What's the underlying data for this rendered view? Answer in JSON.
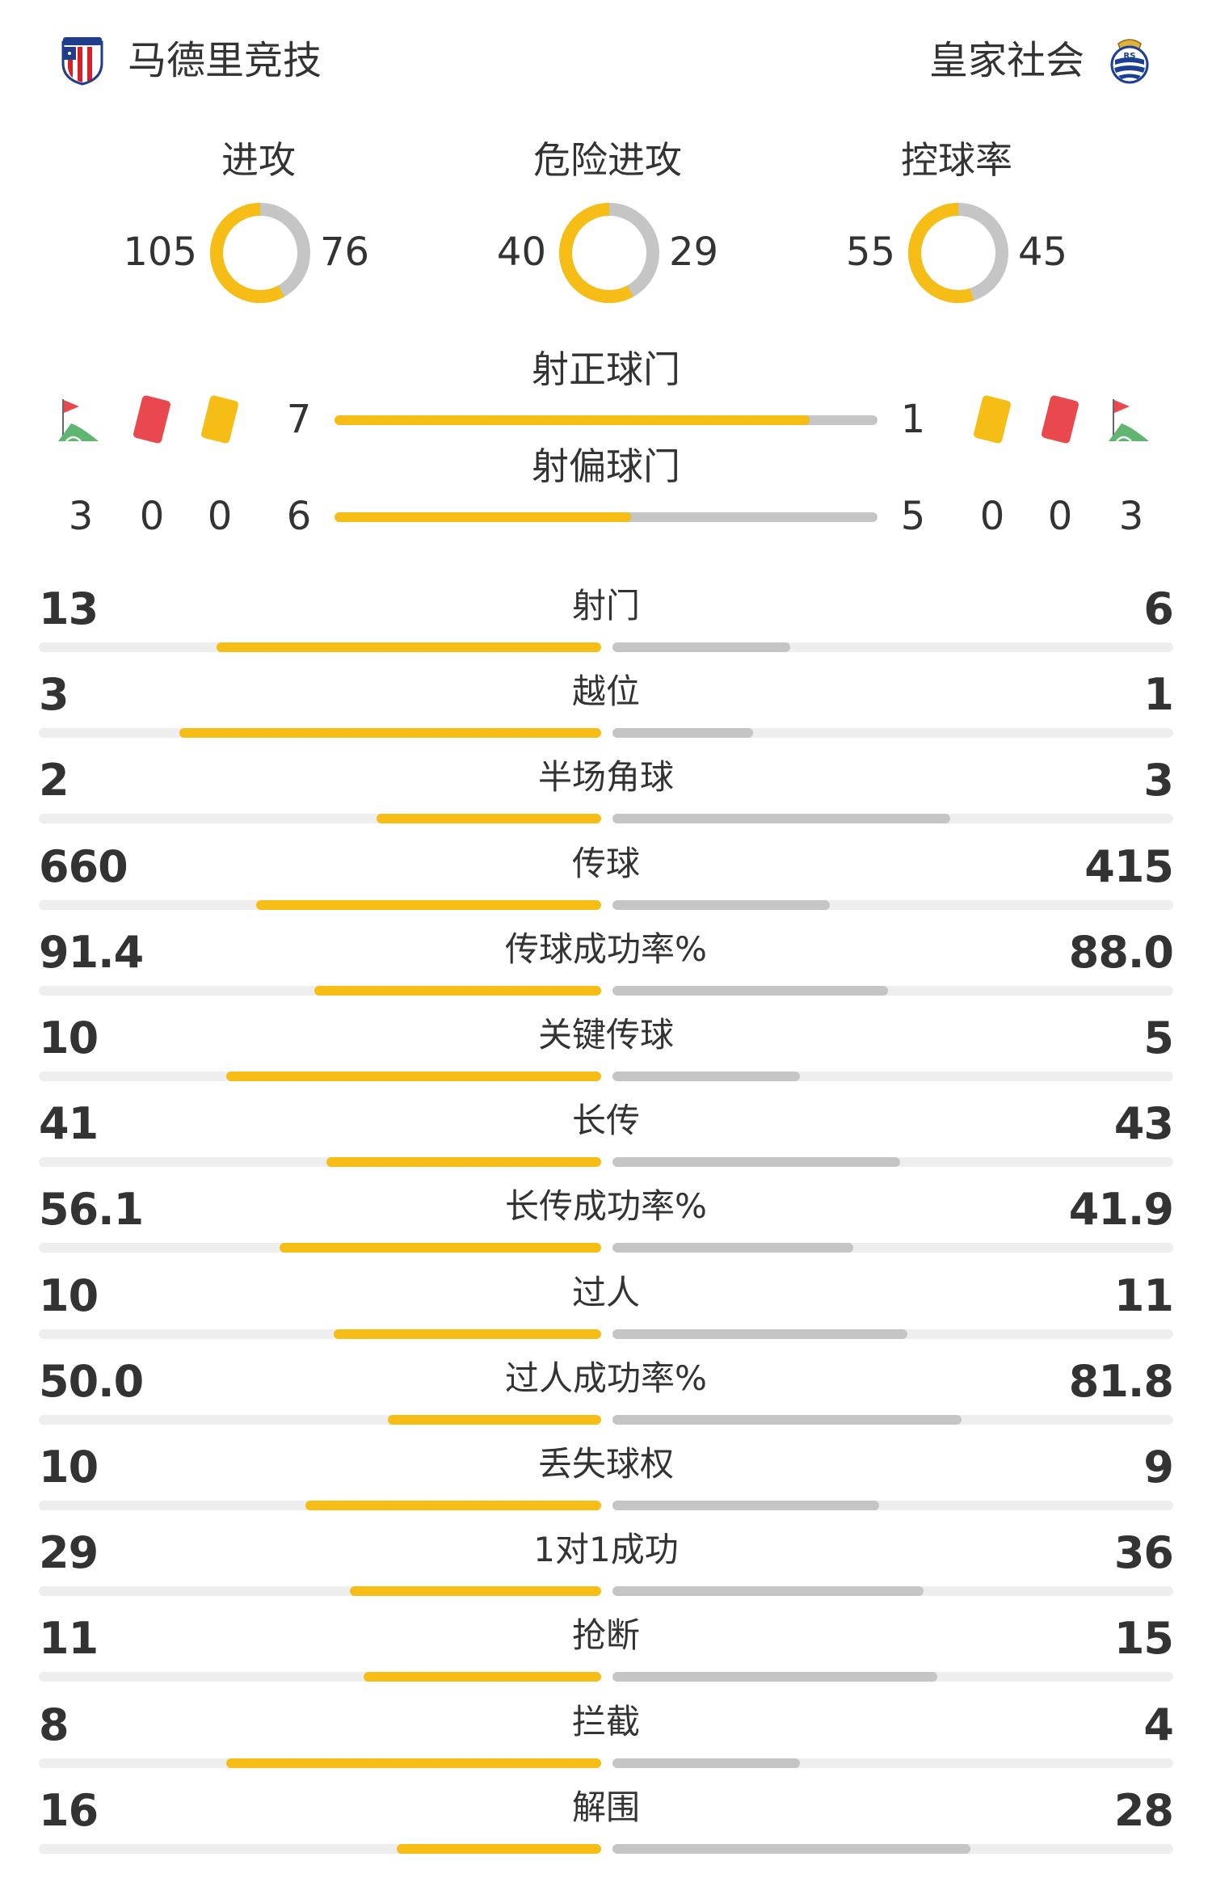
{
  "colors": {
    "accent": "#f6bd16",
    "secondary": "#c5c5c5",
    "track": "#eeeeee",
    "red_card": "#e8484e",
    "yellow_card": "#f6bd16",
    "corner_flag": "#e8484e",
    "corner_grass": "#5fb670"
  },
  "teams": {
    "home": {
      "name": "马德里竞技",
      "crest_icon": "atletico-madrid-crest-icon"
    },
    "away": {
      "name": "皇家社会",
      "crest_icon": "real-sociedad-crest-icon"
    }
  },
  "donuts": [
    {
      "title": "进攻",
      "home": "105",
      "away": "76",
      "home_value": 105,
      "away_value": 76
    },
    {
      "title": "危险进攻",
      "home": "40",
      "away": "29",
      "home_value": 40,
      "away_value": 29
    },
    {
      "title": "控球率",
      "home": "55",
      "away": "45",
      "home_value": 55,
      "away_value": 45
    }
  ],
  "shots": {
    "on_target": {
      "title": "射正球门",
      "home": "7",
      "away": "1",
      "home_value": 7,
      "away_value": 1
    },
    "off_target": {
      "title": "射偏球门",
      "home": "6",
      "away": "5",
      "home_value": 6,
      "away_value": 5
    }
  },
  "discipline": {
    "icons": [
      "corner-flag-icon",
      "red-card-icon",
      "yellow-card-icon"
    ],
    "home": {
      "corners": "3",
      "red_cards": "0",
      "yellow_cards": "0"
    },
    "away": {
      "yellow_cards": "0",
      "red_cards": "0",
      "corners": "3"
    }
  },
  "stats": [
    {
      "label": "射门",
      "home": "13",
      "away": "6",
      "home_value": 13,
      "away_value": 6
    },
    {
      "label": "越位",
      "home": "3",
      "away": "1",
      "home_value": 3,
      "away_value": 1
    },
    {
      "label": "半场角球",
      "home": "2",
      "away": "3",
      "home_value": 2,
      "away_value": 3
    },
    {
      "label": "传球",
      "home": "660",
      "away": "415",
      "home_value": 660,
      "away_value": 415
    },
    {
      "label": "传球成功率%",
      "home": "91.4",
      "away": "88.0",
      "home_value": 91.4,
      "away_value": 88.0
    },
    {
      "label": "关键传球",
      "home": "10",
      "away": "5",
      "home_value": 10,
      "away_value": 5
    },
    {
      "label": "长传",
      "home": "41",
      "away": "43",
      "home_value": 41,
      "away_value": 43
    },
    {
      "label": "长传成功率%",
      "home": "56.1",
      "away": "41.9",
      "home_value": 56.1,
      "away_value": 41.9
    },
    {
      "label": "过人",
      "home": "10",
      "away": "11",
      "home_value": 10,
      "away_value": 11
    },
    {
      "label": "过人成功率%",
      "home": "50.0",
      "away": "81.8",
      "home_value": 50.0,
      "away_value": 81.8
    },
    {
      "label": "丢失球权",
      "home": "10",
      "away": "9",
      "home_value": 10,
      "away_value": 9
    },
    {
      "label": "1对1成功",
      "home": "29",
      "away": "36",
      "home_value": 29,
      "away_value": 36
    },
    {
      "label": "抢断",
      "home": "11",
      "away": "15",
      "home_value": 11,
      "away_value": 15
    },
    {
      "label": "拦截",
      "home": "8",
      "away": "4",
      "home_value": 8,
      "away_value": 4
    },
    {
      "label": "解围",
      "home": "16",
      "away": "28",
      "home_value": 16,
      "away_value": 28
    }
  ]
}
